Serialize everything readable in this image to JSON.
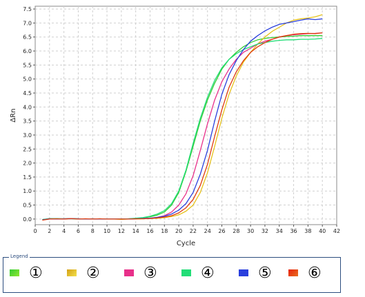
{
  "chart_data": {
    "type": "line",
    "xlabel": "Cycle",
    "ylabel": "ΔRn",
    "xlim": [
      0,
      42
    ],
    "ylim": [
      -0.2,
      7.6
    ],
    "x_ticks": [
      "0",
      "2",
      "4",
      "6",
      "8",
      "10",
      "12",
      "14",
      "16",
      "18",
      "20",
      "22",
      "24",
      "26",
      "28",
      "30",
      "32",
      "34",
      "36",
      "38",
      "40",
      "42"
    ],
    "y_ticks": [
      "0.0",
      "0.5",
      "1.0",
      "1.5",
      "2.0",
      "2.5",
      "3.0",
      "3.5",
      "4.0",
      "4.5",
      "5.0",
      "5.5",
      "6.0",
      "6.5",
      "7.0",
      "7.5"
    ],
    "grid": true,
    "x": [
      1,
      2,
      3,
      4,
      5,
      6,
      7,
      8,
      9,
      10,
      11,
      12,
      13,
      14,
      15,
      16,
      17,
      18,
      19,
      20,
      21,
      22,
      23,
      24,
      25,
      26,
      27,
      28,
      29,
      30,
      31,
      32,
      33,
      34,
      35,
      36,
      37,
      38,
      39,
      40
    ],
    "series": [
      {
        "color": "#33cc33",
        "values": [
          -0.02,
          0.02,
          0.01,
          0.0,
          0.02,
          0.01,
          0.0,
          0.01,
          0.0,
          0.0,
          0.0,
          0.0,
          0.01,
          0.02,
          0.04,
          0.08,
          0.14,
          0.25,
          0.5,
          0.95,
          1.7,
          2.6,
          3.5,
          4.25,
          4.85,
          5.35,
          5.7,
          5.95,
          6.15,
          6.3,
          6.4,
          6.45,
          6.48,
          6.5,
          6.52,
          6.53,
          6.55,
          6.55,
          6.55,
          6.55
        ]
      },
      {
        "color": "#e6c21a",
        "values": [
          -0.03,
          0.01,
          0.0,
          0.01,
          0.02,
          0.0,
          0.01,
          0.0,
          0.0,
          0.0,
          0.0,
          -0.01,
          0.0,
          0.0,
          0.01,
          0.02,
          0.03,
          0.05,
          0.09,
          0.15,
          0.28,
          0.5,
          0.95,
          1.65,
          2.6,
          3.6,
          4.45,
          5.1,
          5.6,
          5.95,
          6.25,
          6.5,
          6.7,
          6.85,
          7.0,
          7.1,
          7.15,
          7.18,
          7.22,
          7.3
        ]
      },
      {
        "color": "#e8308a",
        "values": [
          -0.02,
          0.0,
          0.01,
          0.0,
          0.01,
          0.0,
          0.0,
          0.01,
          0.0,
          0.0,
          0.0,
          0.0,
          0.0,
          0.01,
          0.02,
          0.03,
          0.06,
          0.12,
          0.25,
          0.5,
          0.9,
          1.55,
          2.45,
          3.4,
          4.25,
          4.9,
          5.35,
          5.7,
          5.95,
          6.1,
          6.25,
          6.35,
          6.42,
          6.5,
          6.55,
          6.58,
          6.6,
          6.62,
          6.63,
          6.65
        ]
      },
      {
        "color": "#22dd77",
        "values": [
          -0.02,
          0.01,
          0.02,
          0.01,
          0.01,
          0.0,
          0.0,
          0.0,
          0.01,
          0.0,
          0.0,
          0.0,
          0.01,
          0.03,
          0.05,
          0.1,
          0.18,
          0.3,
          0.55,
          1.0,
          1.75,
          2.7,
          3.6,
          4.35,
          4.95,
          5.4,
          5.7,
          5.9,
          6.05,
          6.15,
          6.25,
          6.3,
          6.35,
          6.38,
          6.4,
          6.4,
          6.42,
          6.42,
          6.43,
          6.45
        ]
      },
      {
        "color": "#2a3fdd",
        "values": [
          -0.03,
          0.01,
          0.0,
          0.01,
          0.02,
          0.01,
          0.0,
          0.0,
          0.0,
          0.0,
          0.0,
          0.0,
          0.0,
          0.01,
          0.02,
          0.03,
          0.06,
          0.1,
          0.18,
          0.32,
          0.55,
          0.95,
          1.6,
          2.45,
          3.5,
          4.45,
          5.15,
          5.65,
          6.05,
          6.35,
          6.55,
          6.72,
          6.85,
          6.95,
          7.0,
          7.05,
          7.1,
          7.15,
          7.12,
          7.15
        ]
      },
      {
        "color": "#e03a0c",
        "values": [
          -0.04,
          0.0,
          0.01,
          0.0,
          0.02,
          0.0,
          0.01,
          0.0,
          0.01,
          0.0,
          0.0,
          0.0,
          0.0,
          0.01,
          0.01,
          0.02,
          0.04,
          0.07,
          0.12,
          0.22,
          0.4,
          0.7,
          1.2,
          1.95,
          2.95,
          3.9,
          4.7,
          5.25,
          5.65,
          5.95,
          6.15,
          6.3,
          6.42,
          6.5,
          6.55,
          6.6,
          6.62,
          6.63,
          6.62,
          6.65
        ]
      }
    ]
  },
  "legend": {
    "title": "Legend",
    "items": [
      {
        "label": "①",
        "color": "#33cc33",
        "color2": "#8fe830"
      },
      {
        "label": "②",
        "color": "#d4a017",
        "color2": "#f2e04a"
      },
      {
        "label": "③",
        "color": "#e8308a",
        "color2": "#e8308a"
      },
      {
        "label": "④",
        "color": "#22dd77",
        "color2": "#22dd77"
      },
      {
        "label": "⑤",
        "color": "#2a3fdd",
        "color2": "#2a3fdd"
      },
      {
        "label": "⑥",
        "color": "#e8200c",
        "color2": "#e86f20"
      }
    ]
  }
}
